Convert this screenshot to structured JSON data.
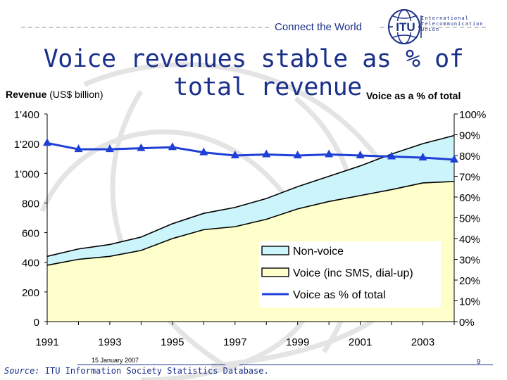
{
  "header": {
    "tagline": "Connect the World",
    "logo_abbr": "ITU",
    "logo_lines": [
      "International",
      "Telecommunication",
      "Union"
    ]
  },
  "slide": {
    "title_line1": "Voice revenues stable as % of",
    "title_line2": "total revenue",
    "left_axis_title_bold": "Revenue",
    "left_axis_title_rest": " (US$ billion)",
    "right_axis_title": "Voice as a % of total"
  },
  "footer": {
    "date": "15 January 2007",
    "source_label": "Source:",
    "source_text": " ITU Information Society Statistics Database.",
    "page_number": "9"
  },
  "colors": {
    "non_voice_fill": "#ccf5fb",
    "voice_fill": "#ffffcc",
    "line_blue": "#1f3fd6",
    "title_blue": "#1a2f8a"
  },
  "chart_data": {
    "type": "area",
    "x": [
      1991,
      1992,
      1993,
      1994,
      1995,
      1996,
      1997,
      1998,
      1999,
      2000,
      2001,
      2002,
      2003,
      2004
    ],
    "x_tick_labels": [
      "1991",
      "1993",
      "1995",
      "1997",
      "1999",
      "2001",
      "2003"
    ],
    "y_left_ticks": [
      "0",
      "200",
      "400",
      "600",
      "800",
      "1'000",
      "1'200",
      "1'400"
    ],
    "y_right_ticks": [
      "0%",
      "10%",
      "20%",
      "30%",
      "40%",
      "50%",
      "60%",
      "70%",
      "80%",
      "90%",
      "100%"
    ],
    "ylim_left": [
      0,
      1400
    ],
    "ylim_right": [
      0,
      100
    ],
    "series": [
      {
        "name": "Voice (inc SMS, dial-up)",
        "axis": "left",
        "kind": "area",
        "values": [
          380,
          420,
          440,
          480,
          560,
          620,
          640,
          690,
          760,
          810,
          850,
          890,
          935,
          945
        ]
      },
      {
        "name": "Non-voice",
        "axis": "left",
        "kind": "stacked-area",
        "values": [
          60,
          70,
          80,
          90,
          100,
          110,
          130,
          140,
          150,
          170,
          200,
          240,
          265,
          310
        ]
      },
      {
        "name": "Voice as % of total",
        "axis": "right",
        "kind": "line",
        "values": [
          86,
          83,
          83,
          83.5,
          84,
          81.5,
          80,
          80.5,
          80,
          80.5,
          80,
          79.5,
          79,
          78
        ]
      }
    ],
    "legend": [
      "Non-voice",
      "Voice (inc SMS, dial-up)",
      "Voice as % of total"
    ],
    "legend_position": "center-right"
  }
}
